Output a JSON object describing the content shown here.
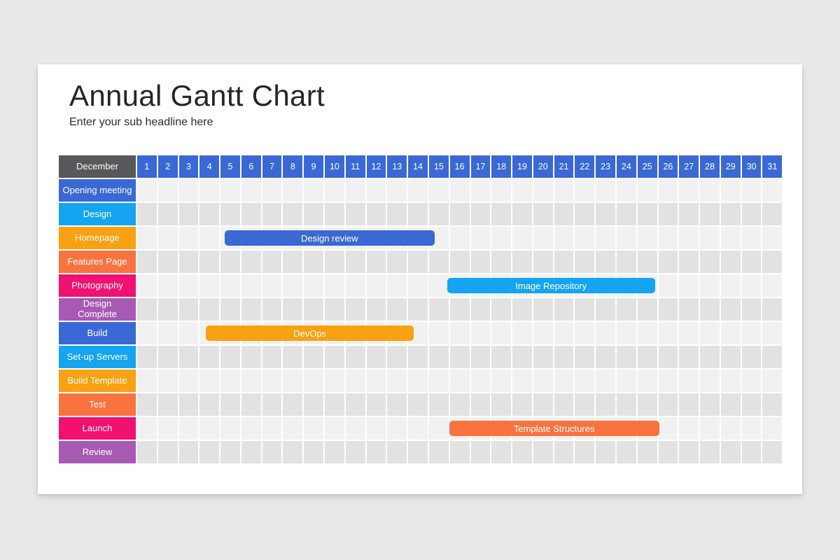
{
  "page": {
    "title": "Annual Gantt Chart",
    "subtitle": "Enter your sub headline here"
  },
  "colors": {
    "background": "#e9e9eb",
    "slide": "#ffffff",
    "title_text": "#262626",
    "subtitle_text": "#2b2b2b",
    "month_header_bg": "#58585a",
    "day_header_bg": "#3a68d4",
    "cell_light": "#f1f1f1",
    "cell_dark": "#e2e2e2",
    "bar_text": "#ffffff",
    "palette": {
      "blue": "#3a68d4",
      "cyan": "#14a4f1",
      "orange": "#f8a112",
      "orange_red": "#f8733f",
      "pink": "#f01170",
      "purple": "#a75ab3"
    }
  },
  "chart_data": {
    "type": "bar",
    "subtype": "gantt",
    "title": "Annual Gantt Chart",
    "month_label": "December",
    "days": [
      1,
      2,
      3,
      4,
      5,
      6,
      7,
      8,
      9,
      10,
      11,
      12,
      13,
      14,
      15,
      16,
      17,
      18,
      19,
      20,
      21,
      22,
      23,
      24,
      25,
      26,
      27,
      28,
      29,
      30,
      31
    ],
    "x_range": [
      1,
      31
    ],
    "grid": true,
    "legend": false,
    "rows": [
      {
        "label": "Opening meeting",
        "color": "blue"
      },
      {
        "label": "Design",
        "color": "cyan"
      },
      {
        "label": "Homepage",
        "color": "orange"
      },
      {
        "label": "Features Page",
        "color": "orange_red"
      },
      {
        "label": "Photography",
        "color": "pink"
      },
      {
        "label": "Design\nComplete",
        "color": "purple"
      },
      {
        "label": "Build",
        "color": "blue"
      },
      {
        "label": "Set-up Servers",
        "color": "cyan"
      },
      {
        "label": "Build Template",
        "color": "orange"
      },
      {
        "label": "Test",
        "color": "orange_red"
      },
      {
        "label": "Launch",
        "color": "pink"
      },
      {
        "label": "Review",
        "color": "purple"
      }
    ],
    "bars": [
      {
        "label": "Design review",
        "task_row": "Homepage",
        "row_index": 3,
        "start_day": 5,
        "end_day": 14,
        "start_unit": 4.2,
        "end_unit": 14.3,
        "color": "blue"
      },
      {
        "label": "Image Repository",
        "task_row": "Photography",
        "row_index": 5,
        "start_day": 15,
        "end_day": 25,
        "start_unit": 14.9,
        "end_unit": 24.9,
        "color": "cyan"
      },
      {
        "label": "DevOps",
        "task_row": "Build",
        "row_index": 7,
        "start_day": 4,
        "end_day": 13,
        "start_unit": 3.3,
        "end_unit": 13.3,
        "color": "orange"
      },
      {
        "label": "Template Structures",
        "task_row": "Launch",
        "row_index": 11,
        "start_day": 16,
        "end_day": 25,
        "start_unit": 15.0,
        "end_unit": 25.1,
        "color": "orange_red"
      }
    ]
  }
}
